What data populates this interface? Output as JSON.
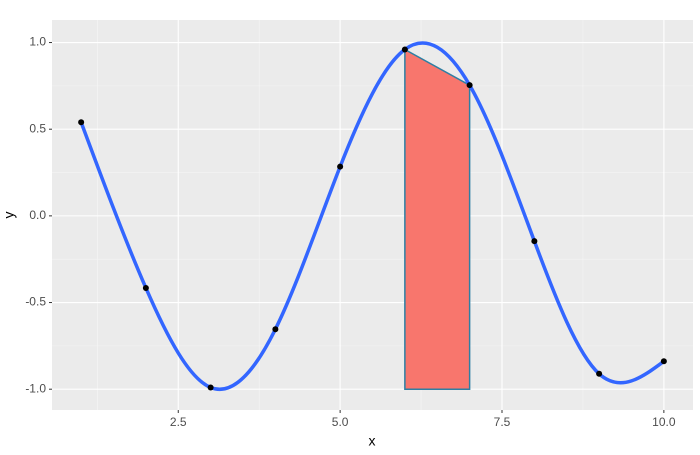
{
  "chart_data": {
    "type": "line",
    "x_label": "x",
    "y_label": "y",
    "series": [
      {
        "x": [
          1,
          2,
          3,
          4,
          5,
          6,
          7,
          8,
          9,
          10
        ],
        "values": [
          0.54,
          -0.416,
          -0.99,
          -0.654,
          0.284,
          0.96,
          0.754,
          -0.146,
          -0.911,
          -0.839
        ],
        "color": "#3366ff",
        "point_color": "#000000",
        "smooth": true
      }
    ],
    "area": {
      "x": [
        6,
        7
      ],
      "values": [
        0.96,
        0.754
      ],
      "base": -1,
      "color": "#f8766d",
      "stroke": "#2e7fa3"
    },
    "xlim": [
      0.55,
      10.45
    ],
    "ylim": [
      -1.12,
      1.13
    ],
    "xticks": [
      2.5,
      {
        "value": 5,
        "label": "5.0"
      },
      7.5,
      {
        "value": 10,
        "label": "10.0"
      }
    ],
    "yticks": [
      {
        "value": -1,
        "label": "-1.0"
      },
      -0.5,
      {
        "value": 0,
        "label": "0.0"
      },
      0.5,
      {
        "value": 1,
        "label": "1.0"
      }
    ],
    "x_minor_ticks": [
      1.25,
      3.75,
      6.25,
      8.75
    ],
    "y_minor_ticks": [
      -0.75,
      -0.25,
      0.25,
      0.75
    ],
    "grid": true
  }
}
